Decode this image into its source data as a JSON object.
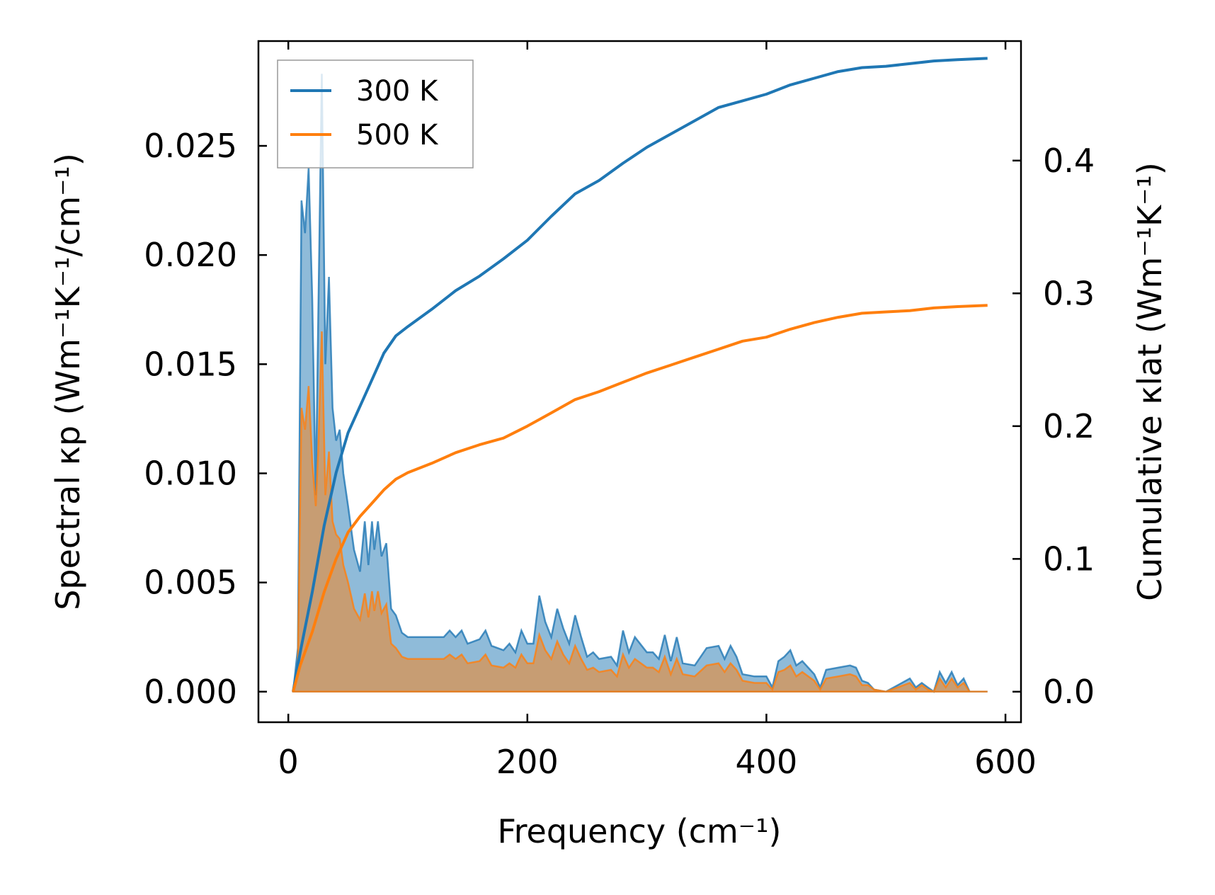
{
  "chart_data": {
    "type": "line",
    "title": "",
    "xlabel": "Frequency (cm⁻¹)",
    "ylabel_left": "Spectral κp (Wm⁻¹K⁻¹/cm⁻¹)",
    "ylabel_right": "Cumulative κlat (Wm⁻¹K⁻¹)",
    "xlim": [
      -25,
      613
    ],
    "ylim_left": [
      -0.0014,
      0.0298
    ],
    "ylim_right": [
      -0.023,
      0.49
    ],
    "x_ticks": [
      0,
      200,
      400,
      600
    ],
    "x_tick_labels": [
      "0",
      "200",
      "400",
      "600"
    ],
    "y_left_ticks": [
      0.0,
      0.005,
      0.01,
      0.015,
      0.02,
      0.025
    ],
    "y_left_tick_labels": [
      "0.000",
      "0.005",
      "0.010",
      "0.015",
      "0.020",
      "0.025"
    ],
    "y_right_ticks": [
      0.0,
      0.1,
      0.2,
      0.3,
      0.4
    ],
    "y_right_tick_labels": [
      "0.0",
      "0.1",
      "0.2",
      "0.3",
      "0.4"
    ],
    "legend_position": "top-left",
    "colors": {
      "s300": "#1f77b4",
      "s500": "#ff7f0e"
    },
    "series": [
      {
        "name": "300 K",
        "spectral": {
          "x": [
            4,
            8,
            11,
            14,
            17,
            20,
            23,
            25,
            28,
            31,
            34,
            37,
            40,
            43,
            46,
            50,
            55,
            60,
            64,
            67,
            70,
            72,
            75,
            78,
            82,
            86,
            90,
            95,
            100,
            110,
            120,
            130,
            135,
            140,
            145,
            150,
            160,
            165,
            170,
            180,
            185,
            190,
            195,
            200,
            205,
            210,
            215,
            220,
            225,
            230,
            235,
            240,
            245,
            250,
            255,
            260,
            270,
            275,
            280,
            285,
            290,
            300,
            305,
            310,
            315,
            320,
            325,
            330,
            340,
            350,
            360,
            365,
            370,
            375,
            380,
            390,
            400,
            405,
            410,
            415,
            420,
            425,
            430,
            440,
            445,
            450,
            460,
            470,
            475,
            480,
            485,
            490,
            500,
            510,
            520,
            525,
            530,
            535,
            540,
            545,
            550,
            555,
            560,
            565,
            570,
            575,
            580,
            585
          ],
          "y": [
            0.0,
            0.002,
            0.0225,
            0.021,
            0.024,
            0.018,
            0.009,
            0.017,
            0.0283,
            0.015,
            0.019,
            0.013,
            0.0115,
            0.012,
            0.01,
            0.0085,
            0.0065,
            0.0055,
            0.0078,
            0.0058,
            0.0078,
            0.0065,
            0.0078,
            0.0062,
            0.0068,
            0.0038,
            0.0035,
            0.0027,
            0.0025,
            0.0025,
            0.0025,
            0.0025,
            0.0028,
            0.0025,
            0.0028,
            0.0022,
            0.0024,
            0.0028,
            0.0021,
            0.0019,
            0.0022,
            0.0018,
            0.0028,
            0.0022,
            0.0022,
            0.0044,
            0.0032,
            0.0025,
            0.0038,
            0.0029,
            0.0022,
            0.0035,
            0.0025,
            0.0016,
            0.0018,
            0.0015,
            0.0016,
            0.0012,
            0.0028,
            0.0018,
            0.0025,
            0.0018,
            0.0018,
            0.0015,
            0.0026,
            0.0014,
            0.0025,
            0.0013,
            0.0012,
            0.002,
            0.0021,
            0.0015,
            0.0021,
            0.0016,
            0.0008,
            0.0007,
            0.0007,
            0.0002,
            0.0014,
            0.0016,
            0.0019,
            0.0012,
            0.0014,
            0.0008,
            0.0002,
            0.001,
            0.0011,
            0.0012,
            0.0011,
            0.0005,
            0.0004,
            0.0001,
            0.0,
            0.0003,
            0.0006,
            0.0002,
            0.0004,
            0.0002,
            0.0,
            0.0009,
            0.0004,
            0.0009,
            0.0003,
            0.0006,
            0.0,
            0.0,
            0.0,
            0.0
          ]
        },
        "cumulative": {
          "x": [
            4,
            10,
            20,
            30,
            40,
            50,
            60,
            70,
            80,
            90,
            100,
            120,
            140,
            160,
            180,
            200,
            220,
            240,
            260,
            280,
            300,
            320,
            340,
            360,
            380,
            400,
            420,
            440,
            460,
            480,
            500,
            520,
            540,
            560,
            585
          ],
          "y": [
            0.0,
            0.03,
            0.075,
            0.125,
            0.165,
            0.195,
            0.215,
            0.235,
            0.255,
            0.268,
            0.275,
            0.288,
            0.302,
            0.313,
            0.326,
            0.34,
            0.358,
            0.375,
            0.385,
            0.398,
            0.41,
            0.42,
            0.43,
            0.44,
            0.445,
            0.45,
            0.457,
            0.462,
            0.467,
            0.47,
            0.471,
            0.473,
            0.475,
            0.476,
            0.477
          ]
        }
      },
      {
        "name": "500 K",
        "spectral": {
          "x": [
            4,
            8,
            11,
            14,
            17,
            20,
            23,
            25,
            28,
            31,
            34,
            37,
            40,
            43,
            46,
            50,
            55,
            60,
            64,
            67,
            70,
            72,
            75,
            78,
            82,
            86,
            90,
            95,
            100,
            110,
            120,
            130,
            135,
            140,
            145,
            150,
            160,
            165,
            170,
            180,
            185,
            190,
            195,
            200,
            205,
            210,
            215,
            220,
            225,
            230,
            235,
            240,
            245,
            250,
            255,
            260,
            270,
            275,
            280,
            285,
            290,
            300,
            305,
            310,
            315,
            320,
            325,
            330,
            340,
            350,
            360,
            365,
            370,
            375,
            380,
            390,
            400,
            405,
            410,
            415,
            420,
            425,
            430,
            440,
            445,
            450,
            460,
            470,
            475,
            480,
            485,
            490,
            500,
            510,
            520,
            525,
            530,
            535,
            540,
            545,
            550,
            555,
            560,
            565,
            570,
            575,
            580,
            585
          ],
          "y": [
            0.0,
            0.0012,
            0.013,
            0.012,
            0.014,
            0.0105,
            0.0085,
            0.011,
            0.0165,
            0.009,
            0.011,
            0.0078,
            0.0072,
            0.007,
            0.0058,
            0.005,
            0.0038,
            0.0033,
            0.0045,
            0.0034,
            0.0046,
            0.0037,
            0.0046,
            0.0036,
            0.004,
            0.0022,
            0.002,
            0.0016,
            0.0015,
            0.0015,
            0.0015,
            0.0015,
            0.0017,
            0.0015,
            0.0017,
            0.0013,
            0.0014,
            0.0017,
            0.0012,
            0.0011,
            0.0013,
            0.0011,
            0.0017,
            0.0013,
            0.0013,
            0.0026,
            0.0019,
            0.0015,
            0.0023,
            0.0017,
            0.0013,
            0.0021,
            0.0015,
            0.001,
            0.0011,
            0.0009,
            0.001,
            0.0007,
            0.0017,
            0.0011,
            0.0015,
            0.0011,
            0.0011,
            0.0009,
            0.0016,
            0.0008,
            0.0015,
            0.0008,
            0.0007,
            0.0012,
            0.0013,
            0.0009,
            0.0013,
            0.001,
            0.0005,
            0.0004,
            0.0004,
            0.0001,
            0.0009,
            0.001,
            0.0012,
            0.0007,
            0.0009,
            0.0005,
            0.0001,
            0.0006,
            0.0007,
            0.0008,
            0.0007,
            0.0003,
            0.0003,
            0.0001,
            0.0,
            0.0002,
            0.0004,
            0.0001,
            0.0003,
            0.0001,
            0.0,
            0.0006,
            0.0002,
            0.0006,
            0.0002,
            0.0004,
            0.0,
            0.0,
            0.0,
            0.0
          ]
        },
        "cumulative": {
          "x": [
            4,
            10,
            20,
            30,
            40,
            50,
            60,
            70,
            80,
            90,
            100,
            120,
            140,
            160,
            180,
            200,
            220,
            240,
            260,
            280,
            300,
            320,
            340,
            360,
            380,
            400,
            420,
            440,
            460,
            480,
            500,
            520,
            540,
            560,
            585
          ],
          "y": [
            0.0,
            0.02,
            0.045,
            0.075,
            0.1,
            0.12,
            0.132,
            0.142,
            0.152,
            0.16,
            0.165,
            0.172,
            0.18,
            0.186,
            0.191,
            0.2,
            0.21,
            0.22,
            0.226,
            0.233,
            0.24,
            0.246,
            0.252,
            0.258,
            0.264,
            0.267,
            0.273,
            0.278,
            0.282,
            0.285,
            0.286,
            0.287,
            0.289,
            0.29,
            0.291
          ]
        }
      }
    ]
  }
}
